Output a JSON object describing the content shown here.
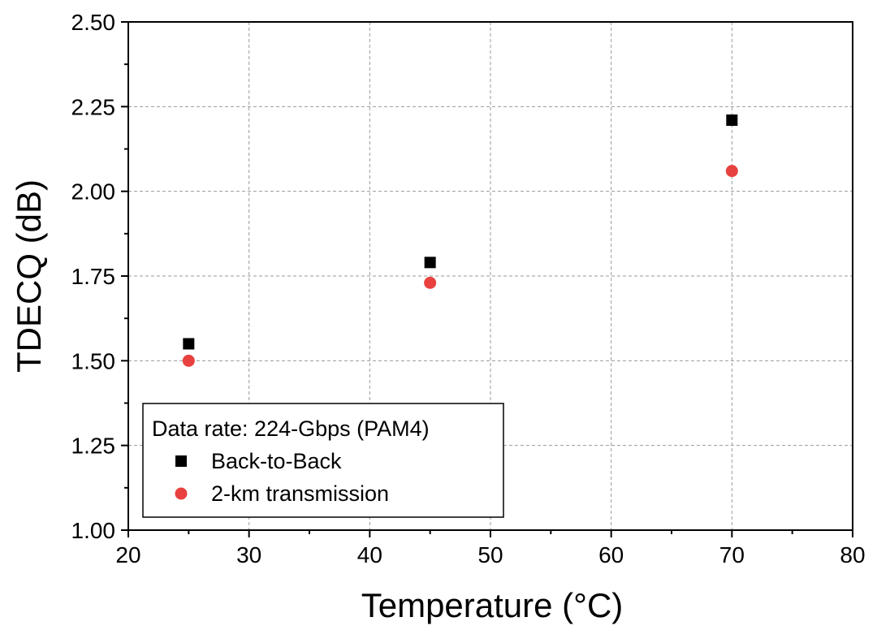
{
  "chart_data": {
    "type": "scatter",
    "xlabel": "Temperature (°C)",
    "ylabel": "TDECQ (dB)",
    "xlim": [
      20,
      80
    ],
    "ylim": [
      1.0,
      2.5
    ],
    "x_ticks": [
      "20",
      "30",
      "40",
      "50",
      "60",
      "70",
      "80"
    ],
    "y_ticks": [
      "1.00",
      "1.25",
      "1.50",
      "1.75",
      "2.00",
      "2.25",
      "2.50"
    ],
    "x_tick_values": [
      20,
      30,
      40,
      50,
      60,
      70,
      80
    ],
    "y_tick_values": [
      1.0,
      1.25,
      1.5,
      1.75,
      2.0,
      2.25,
      2.5
    ],
    "grid": true,
    "legend": {
      "title": "Data rate: 224-Gbps (PAM4)",
      "placement": "bottom-left"
    },
    "series": [
      {
        "name": "Back-to-Back",
        "marker": "square",
        "color": "#000000",
        "x": [
          25,
          45,
          70
        ],
        "y": [
          1.55,
          1.79,
          2.21
        ]
      },
      {
        "name": "2-km transmission",
        "marker": "circle",
        "color": "#e8413f",
        "x": [
          25,
          45,
          70
        ],
        "y": [
          1.5,
          1.73,
          2.06
        ]
      }
    ]
  }
}
